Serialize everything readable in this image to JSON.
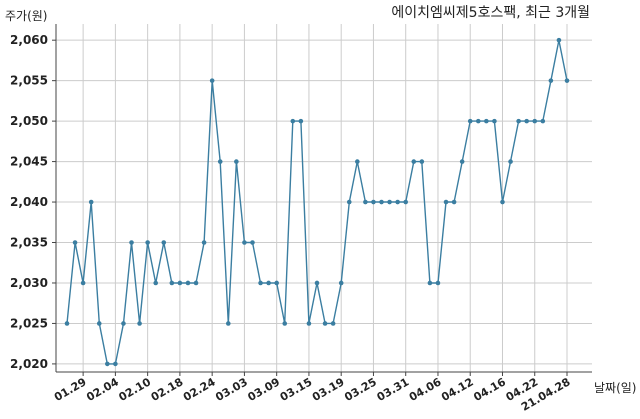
{
  "chart_data": {
    "type": "line",
    "title": "에이치엠씨제5호스팩, 최근 3개월",
    "ylabel": "주가(원)",
    "xlabel": "날짜(일)",
    "ylim": [
      2019,
      2062
    ],
    "y_ticks": [
      2020,
      2025,
      2030,
      2035,
      2040,
      2045,
      2050,
      2055,
      2060
    ],
    "y_tick_labels": [
      "2,020",
      "2,025",
      "2,030",
      "2,035",
      "2,040",
      "2,045",
      "2,050",
      "2,055",
      "2,060"
    ],
    "x_tick_labels": [
      "01.29",
      "02.04",
      "02.10",
      "02.18",
      "02.24",
      "03.03",
      "03.09",
      "03.15",
      "03.19",
      "03.25",
      "03.31",
      "04.06",
      "04.12",
      "04.16",
      "04.22",
      "21.04.28"
    ],
    "x_tick_indices": [
      2,
      6,
      10,
      14,
      18,
      22,
      26,
      30,
      34,
      38,
      42,
      46,
      50,
      54,
      58,
      62
    ],
    "grid": true,
    "colors": {
      "line": "#3b7ea1",
      "grid": "#cccccc"
    },
    "series": [
      {
        "values": [
          2025,
          2035,
          2030,
          2040,
          2025,
          2020,
          2020,
          2025,
          2035,
          2025,
          2035,
          2030,
          2035,
          2030,
          2030,
          2030,
          2030,
          2035,
          2055,
          2045,
          2025,
          2045,
          2035,
          2035,
          2030,
          2030,
          2030,
          2025,
          2050,
          2050,
          2025,
          2030,
          2025,
          2025,
          2030,
          2040,
          2045,
          2040,
          2040,
          2040,
          2040,
          2040,
          2040,
          2045,
          2045,
          2030,
          2030,
          2040,
          2040,
          2045,
          2050,
          2050,
          2050,
          2050,
          2040,
          2045,
          2050,
          2050,
          2050,
          2050,
          2055,
          2060,
          2055
        ]
      }
    ]
  }
}
